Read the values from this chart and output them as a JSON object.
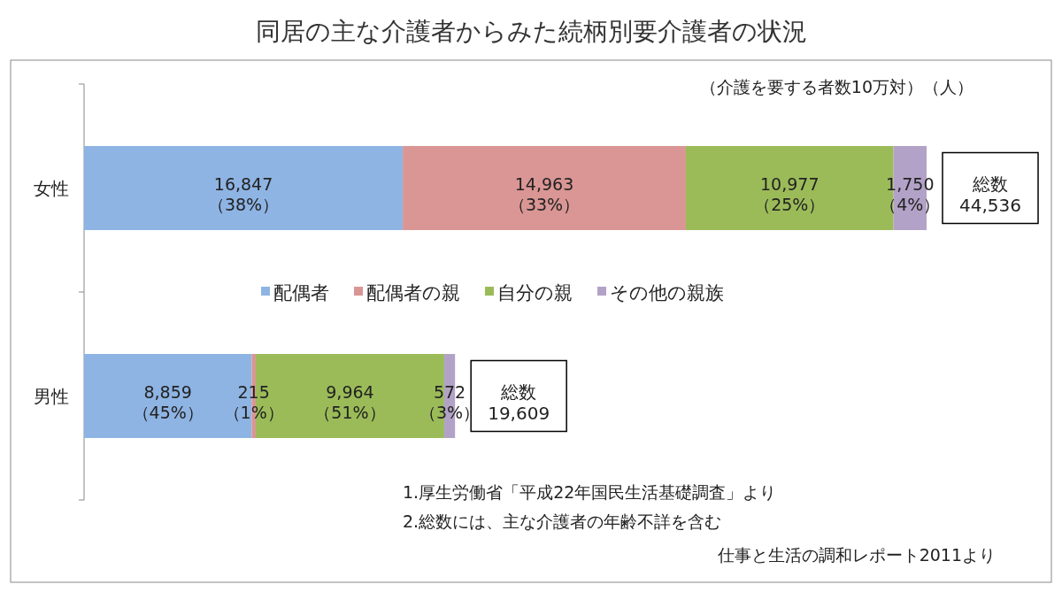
{
  "chart_data": {
    "type": "bar",
    "orientation": "horizontal",
    "stacked": true,
    "title": "同居の主な介護者からみた続柄別要介護者の状況",
    "categories": [
      "女性",
      "男性"
    ],
    "series": [
      {
        "name": "配偶者",
        "color": "#8eb4e3",
        "values": [
          16847,
          8859
        ],
        "value_labels": [
          "16,847\n（38%）",
          "8,859\n（45%）"
        ]
      },
      {
        "name": "配偶者の親",
        "color": "#d99694",
        "values": [
          14963,
          215
        ],
        "value_labels": [
          "14,963\n（33%）",
          "215\n（1%）"
        ]
      },
      {
        "name": "自分の親",
        "color": "#9bbb59",
        "values": [
          10977,
          9964
        ],
        "value_labels": [
          "10,977\n（25%）",
          "9,964\n（51%）"
        ]
      },
      {
        "name": "その他の親族",
        "color": "#b3a2c7",
        "values": [
          1750,
          572
        ],
        "value_labels": [
          "1,750\n（4%）",
          "572\n（3%）"
        ]
      }
    ],
    "totals": [
      "総数\n44,536",
      "総数\n19,609"
    ],
    "legend": "center",
    "annotations": [
      "（介護を要する者数10万対）（人）",
      "1.厚生労働省「平成22年国民生活基礎調査」より",
      "2.総数には、主な介護者の年齢不詳を含む",
      "仕事と生活の調和レポート2011より"
    ]
  }
}
